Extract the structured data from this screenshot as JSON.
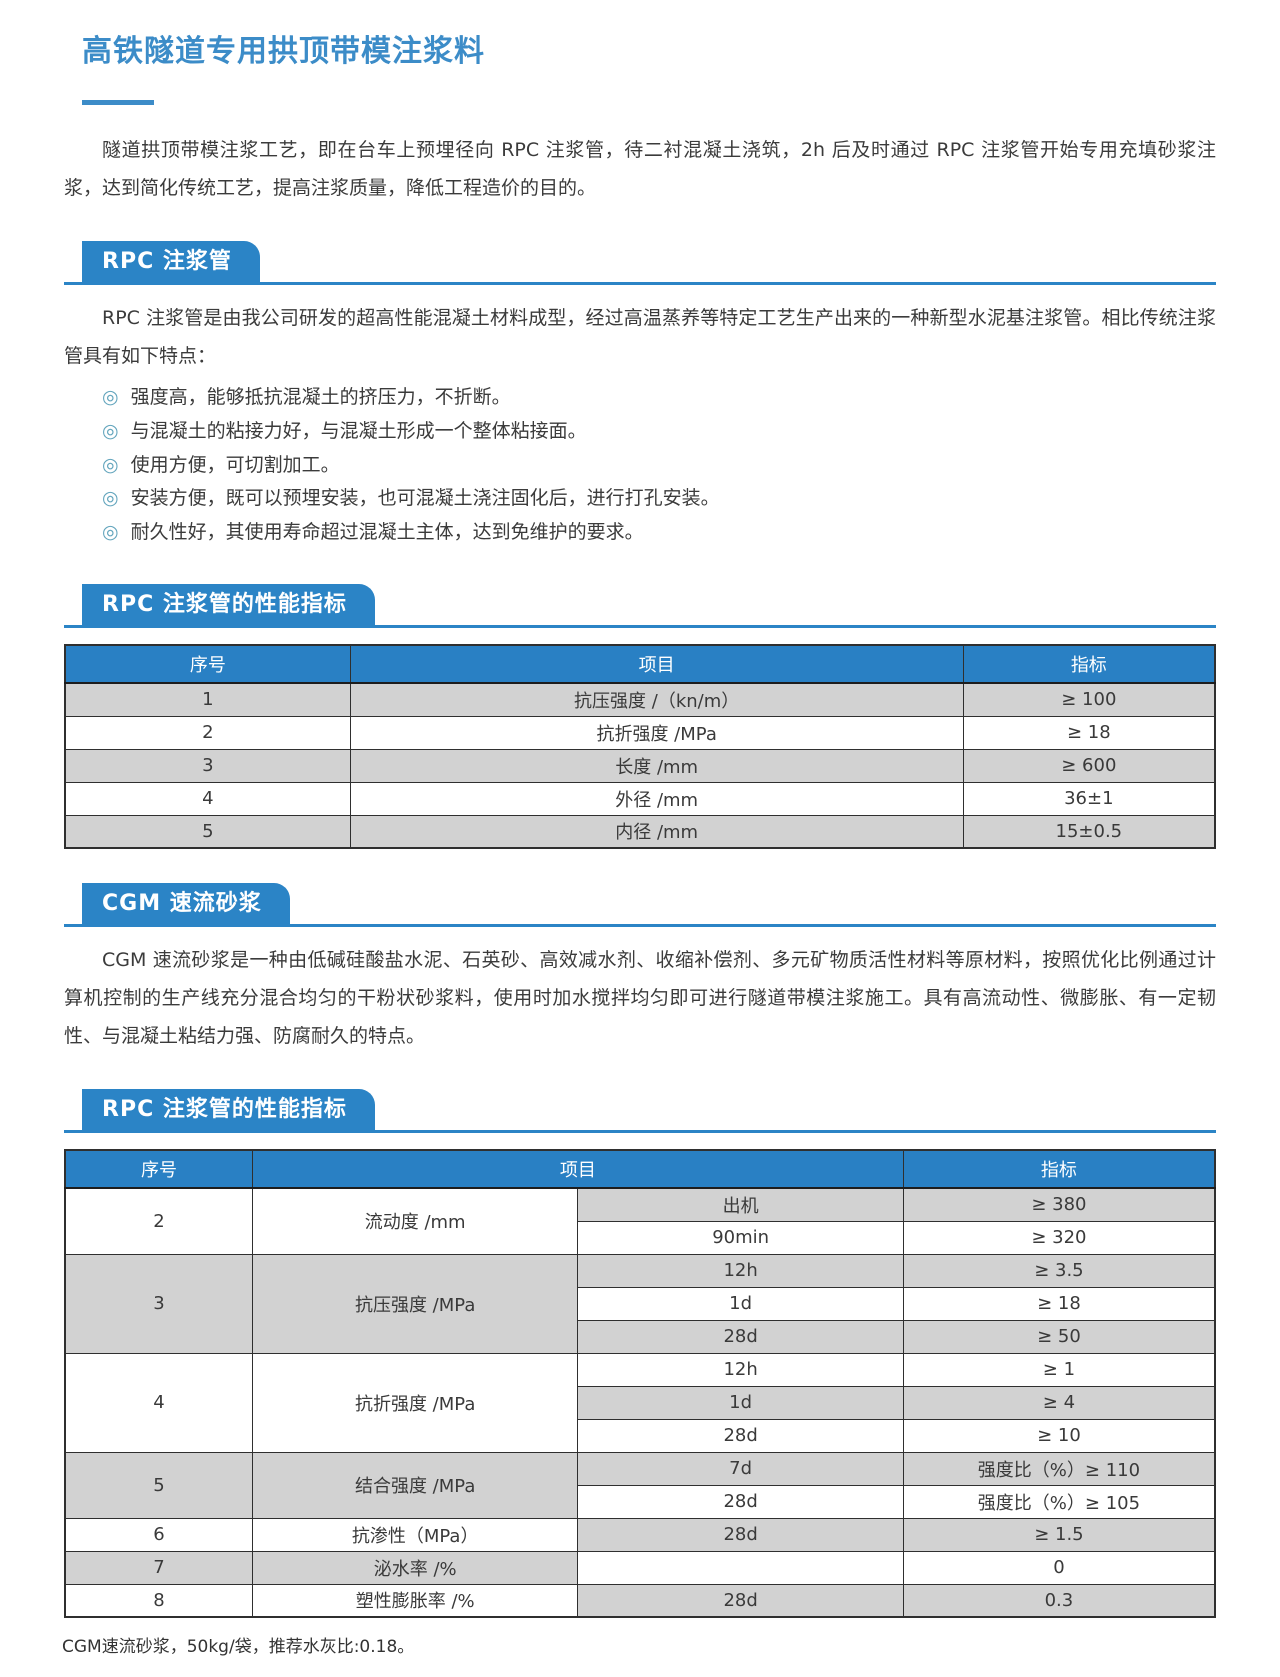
{
  "page": {
    "title": "高铁隧道专用拱顶带模注浆料",
    "intro": "隧道拱顶带模注浆工艺，即在台车上预埋径向 RPC 注浆管，待二衬混凝土浇筑，2h 后及时通过 RPC 注浆管开始专用充填砂浆注浆，达到简化传统工艺，提高注浆质量，降低工程造价的目的。"
  },
  "colors": {
    "accent_blue": "#2b84c6",
    "title_blue": "#3c8cc8",
    "table_header_blue": "#2980c4",
    "row_gray": "#d2d2d2"
  },
  "sections": {
    "rpc": {
      "banner": "RPC 注浆管",
      "description": "RPC 注浆管是由我公司研发的超高性能混凝土材料成型，经过高温蒸养等特定工艺生产出来的一种新型水泥基注浆管。相比传统注浆管具有如下特点：",
      "bullet_icon": "◎",
      "features": [
        "强度高，能够抵抗混凝土的挤压力，不折断。",
        "与混凝土的粘接力好，与混凝土形成一个整体粘接面。",
        "使用方便，可切割加工。",
        "安装方便，既可以预埋安装，也可混凝土浇注固化后，进行打孔安装。",
        "耐久性好，其使用寿命超过混凝土主体，达到免维护的要求。"
      ]
    },
    "rpc_table": {
      "banner": "RPC 注浆管的性能指标",
      "headers": {
        "no": "序号",
        "item": "项目",
        "value": "指标"
      },
      "rows": [
        {
          "no": "1",
          "item": "抗压强度 /（kn/m）",
          "value": "≥ 100"
        },
        {
          "no": "2",
          "item": "抗折强度 /MPa",
          "value": "≥ 18"
        },
        {
          "no": "3",
          "item": "长度 /mm",
          "value": "≥ 600"
        },
        {
          "no": "4",
          "item": "外径 /mm",
          "value": "36±1"
        },
        {
          "no": "5",
          "item": "内径 /mm",
          "value": "15±0.5"
        }
      ]
    },
    "cgm": {
      "banner": "CGM 速流砂浆",
      "description": "CGM 速流砂浆是一种由低碱硅酸盐水泥、石英砂、高效减水剂、收缩补偿剂、多元矿物质活性材料等原材料，按照优化比例通过计算机控制的生产线充分混合均匀的干粉状砂浆料，使用时加水搅拌均匀即可进行隧道带模注浆施工。具有高流动性、微膨胀、有一定韧性、与混凝土粘结力强、防腐耐久的特点。"
    },
    "cgm_table": {
      "banner": "RPC 注浆管的性能指标",
      "headers": {
        "no": "序号",
        "item": "项目",
        "value": "指标"
      },
      "rows": [
        {
          "no": "2",
          "item": "流动度 /mm",
          "cond": "出机",
          "value": "≥ 380"
        },
        {
          "cond": "90min",
          "value": "≥ 320"
        },
        {
          "no": "3",
          "item": "抗压强度 /MPa",
          "cond": "12h",
          "value": "≥ 3.5"
        },
        {
          "cond": "1d",
          "value": "≥ 18"
        },
        {
          "cond": "28d",
          "value": "≥ 50"
        },
        {
          "no": "4",
          "item": "抗折强度 /MPa",
          "cond": "12h",
          "value": "≥ 1"
        },
        {
          "cond": "1d",
          "value": "≥ 4"
        },
        {
          "cond": "28d",
          "value": "≥ 10"
        },
        {
          "no": "5",
          "item": "结合强度 /MPa",
          "cond": "7d",
          "value": "强度比（%）≥ 110"
        },
        {
          "cond": "28d",
          "value": "强度比（%）≥ 105"
        },
        {
          "no": "6",
          "item": "抗渗性（MPa）",
          "cond": "28d",
          "value": "≥ 1.5"
        },
        {
          "no": "7",
          "item": "泌水率 /%",
          "cond": "",
          "value": "0"
        },
        {
          "no": "8",
          "item": "塑性膨胀率 /%",
          "cond": "28d",
          "value": "0.3"
        }
      ]
    },
    "footnote": "CGM速流砂浆，50kg/袋，推荐水灰比:0.18。"
  }
}
